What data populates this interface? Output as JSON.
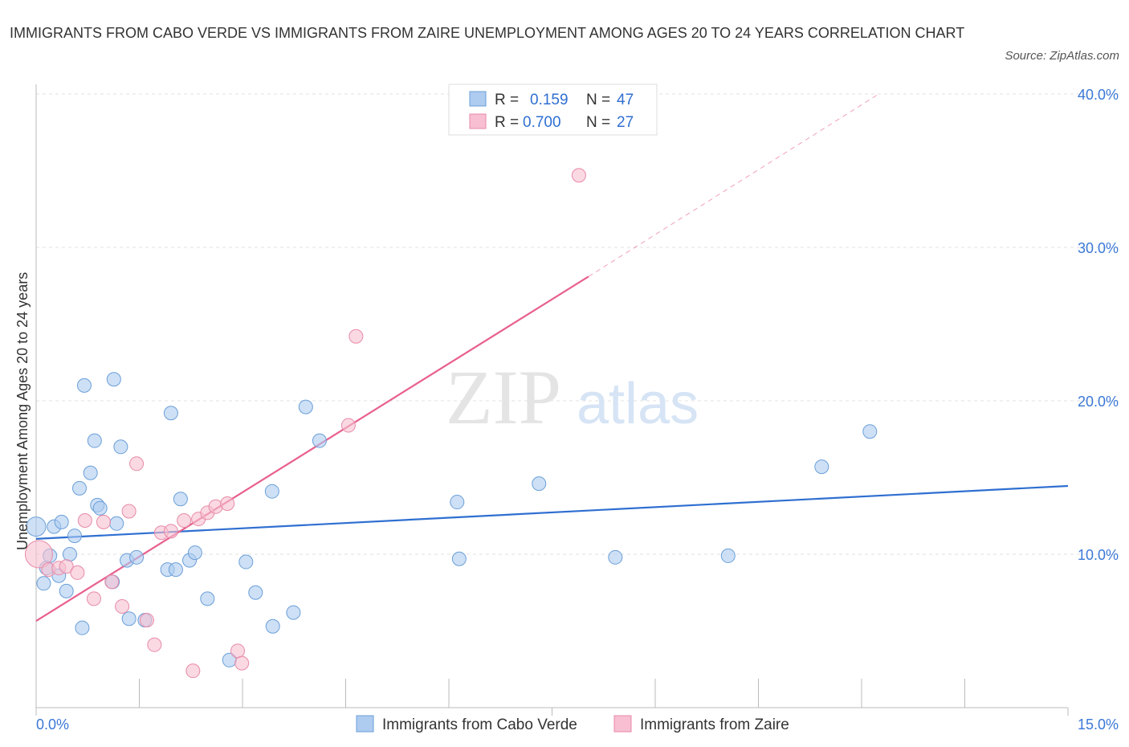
{
  "title": "IMMIGRANTS FROM CABO VERDE VS IMMIGRANTS FROM ZAIRE UNEMPLOYMENT AMONG AGES 20 TO 24 YEARS CORRELATION CHART",
  "source": "Source: ZipAtlas.com",
  "chart_data": {
    "type": "scatter",
    "title": "IMMIGRANTS FROM CABO VERDE VS IMMIGRANTS FROM ZAIRE UNEMPLOYMENT AMONG AGES 20 TO 24 YEARS CORRELATION CHART",
    "xlabel": "",
    "ylabel": "Unemployment Among Ages 20 to 24 years",
    "xlim": [
      0,
      15
    ],
    "ylim": [
      0,
      40
    ],
    "x_tick_labels": [
      "0.0%",
      "15.0%"
    ],
    "y_ticks": [
      10,
      20,
      30,
      40
    ],
    "y_tick_labels": [
      "10.0%",
      "20.0%",
      "30.0%",
      "40.0%"
    ],
    "grid": true,
    "legend_placement": "top-center",
    "legend": [
      {
        "r_label": "R =",
        "r": "0.159",
        "n_label": "N =",
        "n": "47"
      },
      {
        "r_label": "R =",
        "r": "0.700",
        "n_label": "N =",
        "n": "27"
      }
    ],
    "series": [
      {
        "name": "Immigrants from Cabo Verde",
        "color": "#6a9fd8",
        "fill": "#aecbf0",
        "line_color": "#2f6fd1",
        "trend": {
          "x": [
            0,
            15
          ],
          "y": [
            11.0,
            14.45
          ]
        },
        "points": [
          [
            0.0,
            11.8
          ],
          [
            0.26,
            11.8
          ],
          [
            0.37,
            12.1
          ],
          [
            0.2,
            9.9
          ],
          [
            0.49,
            10.0
          ],
          [
            0.56,
            11.2
          ],
          [
            0.15,
            9.1
          ],
          [
            0.33,
            8.6
          ],
          [
            0.11,
            8.1
          ],
          [
            0.44,
            7.6
          ],
          [
            0.67,
            5.2
          ],
          [
            0.7,
            21.0
          ],
          [
            1.13,
            21.4
          ],
          [
            0.85,
            17.4
          ],
          [
            1.23,
            17.0
          ],
          [
            0.79,
            15.3
          ],
          [
            0.63,
            14.3
          ],
          [
            0.89,
            13.2
          ],
          [
            0.93,
            13.0
          ],
          [
            1.17,
            12.0
          ],
          [
            1.32,
            9.6
          ],
          [
            1.46,
            9.8
          ],
          [
            1.11,
            8.2
          ],
          [
            1.35,
            5.8
          ],
          [
            1.58,
            5.7
          ],
          [
            1.96,
            19.2
          ],
          [
            2.1,
            13.6
          ],
          [
            1.91,
            9.0
          ],
          [
            2.03,
            9.0
          ],
          [
            2.23,
            9.6
          ],
          [
            2.31,
            10.1
          ],
          [
            2.49,
            7.1
          ],
          [
            2.81,
            3.1
          ],
          [
            3.05,
            9.5
          ],
          [
            3.19,
            7.5
          ],
          [
            3.43,
            14.1
          ],
          [
            3.44,
            5.3
          ],
          [
            3.74,
            6.2
          ],
          [
            3.92,
            19.6
          ],
          [
            4.12,
            17.4
          ],
          [
            6.12,
            13.4
          ],
          [
            6.15,
            9.7
          ],
          [
            7.31,
            14.6
          ],
          [
            8.42,
            9.8
          ],
          [
            10.06,
            9.9
          ],
          [
            11.42,
            15.7
          ],
          [
            12.12,
            18.0
          ]
        ]
      },
      {
        "name": "Immigrants from Zaire",
        "color": "#e88aa8",
        "fill": "#f7bfd1",
        "line_color": "#e8608e",
        "trend": {
          "x": [
            0,
            8.03
          ],
          "y": [
            5.65,
            28.1
          ]
        },
        "trend_dashed": {
          "x": [
            8.03,
            12.25
          ],
          "y": [
            28.1,
            40.0
          ]
        },
        "points": [
          [
            0.04,
            10.0
          ],
          [
            0.18,
            9.0
          ],
          [
            0.33,
            9.1
          ],
          [
            0.44,
            9.2
          ],
          [
            0.6,
            8.8
          ],
          [
            0.71,
            12.2
          ],
          [
            0.84,
            7.1
          ],
          [
            0.98,
            12.1
          ],
          [
            1.1,
            8.2
          ],
          [
            1.25,
            6.6
          ],
          [
            1.35,
            12.8
          ],
          [
            1.46,
            15.9
          ],
          [
            1.61,
            5.7
          ],
          [
            1.72,
            4.1
          ],
          [
            1.82,
            11.4
          ],
          [
            1.96,
            11.5
          ],
          [
            2.15,
            12.2
          ],
          [
            2.28,
            2.4
          ],
          [
            2.36,
            12.3
          ],
          [
            2.49,
            12.7
          ],
          [
            2.61,
            13.1
          ],
          [
            2.78,
            13.3
          ],
          [
            2.93,
            3.7
          ],
          [
            2.99,
            2.9
          ],
          [
            4.54,
            18.4
          ],
          [
            4.65,
            24.2
          ],
          [
            7.89,
            34.7
          ]
        ]
      }
    ]
  }
}
